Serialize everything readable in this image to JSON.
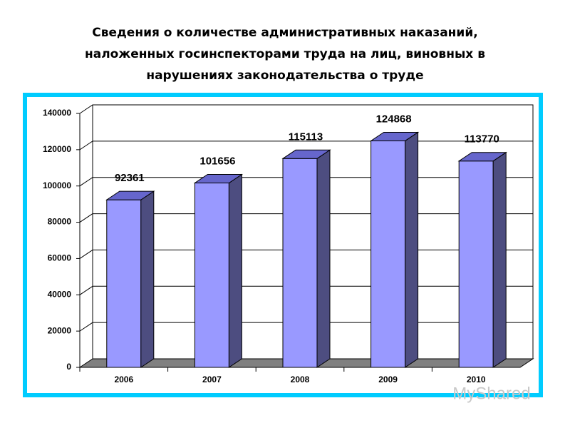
{
  "chart_data": {
    "type": "bar3d",
    "title": [
      "Сведения о количестве административных  наказаний,",
      "наложенных госинспекторами  труда на лиц, виновных в",
      "нарушениях законодательства  о труде"
    ],
    "categories": [
      "2006",
      "2007",
      "2008",
      "2009",
      "2010"
    ],
    "values": [
      92361,
      101656,
      115113,
      124868,
      113770
    ],
    "color": "#9999ff",
    "ylim": [
      0,
      140000
    ],
    "yticks": [
      0,
      20000,
      40000,
      60000,
      80000,
      100000,
      120000,
      140000
    ],
    "grid": true
  },
  "watermark": "MyShared"
}
